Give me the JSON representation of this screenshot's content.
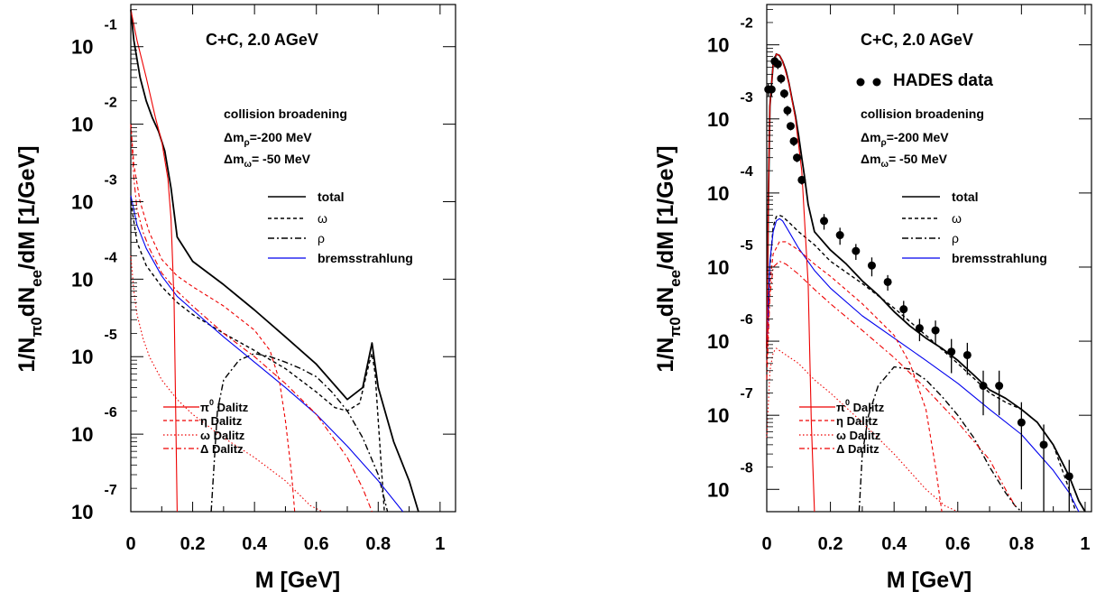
{
  "chart_data": [
    {
      "type": "line",
      "title": "C+C, 2.0 AGeV",
      "xlabel": "M [GeV]",
      "ylabel": "1/Nπ0dNee/dM [1/GeV]",
      "ylabel_parts": {
        "a": "1/N",
        "b": "π0",
        "c": "dN",
        "d": "ee",
        "e": "/dM [1/GeV]"
      },
      "xlim": [
        0,
        1.05
      ],
      "ylim": [
        1e-07,
        0.35
      ],
      "yscale": "log",
      "x_ticks": [
        "0",
        "0.2",
        "0.4",
        "0.6",
        "0.8",
        "1"
      ],
      "y_ticks": [
        {
          "base": "10",
          "exp": "-7"
        },
        {
          "base": "10",
          "exp": "-6"
        },
        {
          "base": "10",
          "exp": "-5"
        },
        {
          "base": "10",
          "exp": "-4"
        },
        {
          "base": "10",
          "exp": "-3"
        },
        {
          "base": "10",
          "exp": "-2"
        },
        {
          "base": "10",
          "exp": "-1"
        }
      ],
      "annotation": {
        "line1": "collision broadening",
        "line2a": "Δm",
        "line2sub": "ρ",
        "line2b": "=-200 MeV",
        "line3a": "Δm",
        "line3sub": "ω",
        "line3b": "= -50 MeV"
      },
      "legend_top": [
        "total",
        "ω",
        "ρ",
        "bremsstrahlung"
      ],
      "legend_bottom": [
        {
          "sym": "π",
          "sup": "0",
          "text": " Dalitz"
        },
        {
          "sym": "η",
          "sup": "",
          "text": " Dalitz"
        },
        {
          "sym": "ω",
          "sup": "",
          "text": " Dalitz"
        },
        {
          "sym": "Δ",
          "sup": "",
          "text": " Dalitz"
        }
      ],
      "colors": {
        "total": "#000000",
        "omega": "#000000",
        "rho": "#000000",
        "brems": "#0000ee",
        "dalitz": "#ee0000"
      },
      "series": [
        {
          "key": "total",
          "x": [
            0.0,
            0.01,
            0.03,
            0.05,
            0.07,
            0.09,
            0.11,
            0.13,
            0.15,
            0.2,
            0.3,
            0.4,
            0.5,
            0.6,
            0.7,
            0.75,
            0.78,
            0.8,
            0.85,
            0.9,
            0.93
          ],
          "y": [
            0.3,
            0.12,
            0.04,
            0.02,
            0.012,
            0.008,
            0.0045,
            0.0015,
            0.00035,
            0.00017,
            8.5e-05,
            4e-05,
            1.8e-05,
            8e-06,
            2.8e-06,
            4e-06,
            1.5e-05,
            4e-06,
            8e-07,
            2.5e-07,
            1e-07
          ]
        },
        {
          "key": "omega",
          "x": [
            0.0,
            0.02,
            0.05,
            0.1,
            0.15,
            0.2,
            0.3,
            0.4,
            0.5,
            0.6,
            0.66,
            0.7,
            0.74,
            0.77,
            0.78,
            0.79,
            0.8,
            0.82
          ],
          "y": [
            0.001,
            0.0003,
            0.00015,
            8e-05,
            5e-05,
            3.5e-05,
            2e-05,
            1.2e-05,
            7e-06,
            3.5e-06,
            2.2e-06,
            2e-06,
            2.5e-06,
            8e-06,
            1.1e-05,
            6e-06,
            1.5e-06,
            1e-07
          ]
        },
        {
          "key": "rho",
          "x": [
            0.26,
            0.28,
            0.3,
            0.35,
            0.4,
            0.45,
            0.5,
            0.55,
            0.6,
            0.65,
            0.7,
            0.75,
            0.8,
            0.83
          ],
          "y": [
            1e-07,
            2e-06,
            5e-06,
            9e-06,
            1.1e-05,
            1e-05,
            8.5e-06,
            7e-06,
            5.5e-06,
            3.5e-06,
            2e-06,
            9e-07,
            3e-07,
            1e-07
          ]
        },
        {
          "key": "brems",
          "x": [
            0.0,
            0.02,
            0.05,
            0.1,
            0.15,
            0.2,
            0.3,
            0.4,
            0.5,
            0.6,
            0.7,
            0.8,
            0.88
          ],
          "y": [
            0.0012,
            0.0005,
            0.00025,
            0.00011,
            6e-05,
            4e-05,
            1.8e-05,
            8.5e-06,
            4e-06,
            1.8e-06,
            7e-07,
            2.5e-07,
            1e-07
          ]
        },
        {
          "key": "pi0",
          "x": [
            0.0,
            0.02,
            0.05,
            0.08,
            0.1,
            0.12,
            0.13,
            0.14,
            0.15
          ],
          "y": [
            0.3,
            0.12,
            0.04,
            0.012,
            0.006,
            0.002,
            0.0006,
            5e-05,
            1e-07
          ]
        },
        {
          "key": "eta",
          "x": [
            0.0,
            0.01,
            0.03,
            0.06,
            0.1,
            0.15,
            0.2,
            0.3,
            0.4,
            0.45,
            0.48,
            0.5,
            0.52,
            0.53
          ],
          "y": [
            0.01,
            0.003,
            0.001,
            0.0004,
            0.00018,
            0.00011,
            8e-05,
            4.5e-05,
            2.2e-05,
            1.2e-05,
            5e-06,
            1.5e-06,
            3e-07,
            1e-07
          ]
        },
        {
          "key": "omegadal",
          "x": [
            0.0,
            0.01,
            0.02,
            0.04,
            0.06,
            0.1,
            0.15,
            0.2,
            0.3,
            0.4,
            0.5,
            0.58,
            0.62
          ],
          "y": [
            0.0002,
            7e-05,
            3.5e-05,
            1.7e-05,
            1e-05,
            5e-06,
            2.8e-06,
            1.8e-06,
            9e-07,
            5e-07,
            2.5e-07,
            1.2e-07,
            1e-07
          ]
        },
        {
          "key": "delta",
          "x": [
            0.0,
            0.01,
            0.02,
            0.04,
            0.06,
            0.1,
            0.15,
            0.2,
            0.3,
            0.4,
            0.5,
            0.6,
            0.7,
            0.75,
            0.78
          ],
          "y": [
            0.01,
            0.002,
            0.0008,
            0.0004,
            0.00025,
            0.00012,
            7e-05,
            4.5e-05,
            2e-05,
            1e-05,
            4.5e-06,
            1.8e-06,
            5e-07,
            2e-07,
            1e-07
          ]
        }
      ]
    },
    {
      "type": "line",
      "title": "C+C, 2.0 AGeV",
      "xlabel": "M [GeV]",
      "ylabel": "1/Nπ0dNee/dM [1/GeV]",
      "ylabel_parts": {
        "a": "1/N",
        "b": "π0",
        "c": "dN",
        "d": "ee",
        "e": "/dM [1/GeV]"
      },
      "xlim": [
        0,
        1.02
      ],
      "ylim": [
        5e-09,
        0.035
      ],
      "yscale": "log",
      "x_ticks": [
        "0",
        "0.2",
        "0.4",
        "0.6",
        "0.8",
        "1"
      ],
      "y_ticks": [
        {
          "base": "10",
          "exp": "-8"
        },
        {
          "base": "10",
          "exp": "-7"
        },
        {
          "base": "10",
          "exp": "-6"
        },
        {
          "base": "10",
          "exp": "-5"
        },
        {
          "base": "10",
          "exp": "-4"
        },
        {
          "base": "10",
          "exp": "-3"
        },
        {
          "base": "10",
          "exp": "-2"
        }
      ],
      "data_label": "HADES data",
      "annotation": {
        "line1": "collision broadening",
        "line2a": "Δm",
        "line2sub": "ρ",
        "line2b": "=-200 MeV",
        "line3a": "Δm",
        "line3sub": "ω",
        "line3b": "= -50 MeV"
      },
      "legend_top": [
        "total",
        "ω",
        "ρ",
        "bremsstrahlung"
      ],
      "legend_bottom": [
        {
          "sym": "π",
          "sup": "0",
          "text": " Dalitz"
        },
        {
          "sym": "η",
          "sup": "",
          "text": " Dalitz"
        },
        {
          "sym": "ω",
          "sup": "",
          "text": " Dalitz"
        },
        {
          "sym": "Δ",
          "sup": "",
          "text": " Dalitz"
        }
      ],
      "colors": {
        "total": "#000000",
        "omega": "#000000",
        "rho": "#000000",
        "brems": "#0000ee",
        "dalitz": "#ee0000",
        "data": "#000000"
      },
      "series": [
        {
          "key": "total",
          "x": [
            0.0,
            0.005,
            0.01,
            0.02,
            0.03,
            0.04,
            0.05,
            0.06,
            0.07,
            0.08,
            0.09,
            0.1,
            0.11,
            0.12,
            0.13,
            0.15,
            0.2,
            0.25,
            0.3,
            0.35,
            0.4,
            0.45,
            0.5,
            0.55,
            0.6,
            0.65,
            0.7,
            0.75,
            0.8,
            0.85,
            0.9,
            0.95,
            0.98,
            1.0
          ],
          "y": [
            8e-07,
            8e-05,
            0.0015,
            0.0055,
            0.0075,
            0.0072,
            0.006,
            0.0045,
            0.003,
            0.0018,
            0.0011,
            0.0006,
            0.0003,
            0.00015,
            7e-05,
            3e-05,
            1.7e-05,
            1.1e-05,
            6.5e-06,
            4.2e-06,
            2.5e-06,
            1.6e-06,
            1.1e-06,
            8e-07,
            5.5e-07,
            3.5e-07,
            2.2e-07,
            1.7e-07,
            1.2e-07,
            8e-08,
            4e-08,
            1.5e-08,
            7e-09,
            5e-09
          ]
        },
        {
          "key": "omega",
          "x": [
            0.0,
            0.01,
            0.02,
            0.03,
            0.04,
            0.05,
            0.07,
            0.1,
            0.15,
            0.2,
            0.3,
            0.4,
            0.5,
            0.6,
            0.7,
            0.75,
            0.8,
            0.85,
            0.9,
            0.95,
            0.97
          ],
          "y": [
            6e-07,
            1e-05,
            3.5e-05,
            4.8e-05,
            5e-05,
            4.8e-05,
            4e-05,
            3e-05,
            2e-05,
            1.2e-05,
            6e-06,
            2.8e-06,
            1.2e-06,
            5e-07,
            2e-07,
            1.5e-07,
            1.2e-07,
            8e-08,
            4e-08,
            1e-08,
            5e-09
          ]
        },
        {
          "key": "rho",
          "x": [
            0.29,
            0.3,
            0.32,
            0.35,
            0.4,
            0.45,
            0.5,
            0.55,
            0.6,
            0.65,
            0.7,
            0.75,
            0.78,
            0.8
          ],
          "y": [
            5e-09,
            3e-08,
            1e-07,
            2.5e-07,
            4.5e-07,
            4.2e-07,
            3e-07,
            1.8e-07,
            1e-07,
            5e-08,
            2e-08,
            9e-09,
            6e-09,
            5e-09
          ]
        },
        {
          "key": "brems",
          "x": [
            0.0,
            0.005,
            0.01,
            0.02,
            0.03,
            0.04,
            0.05,
            0.07,
            0.1,
            0.15,
            0.2,
            0.3,
            0.4,
            0.5,
            0.6,
            0.7,
            0.8,
            0.9,
            0.95,
            0.98
          ],
          "y": [
            8e-07,
            3e-06,
            1.2e-05,
            3e-05,
            4.2e-05,
            4.5e-05,
            4.2e-05,
            3e-05,
            1.8e-05,
            9e-06,
            5.2e-06,
            2.2e-06,
            1.1e-06,
            5.5e-07,
            2.7e-07,
            1.2e-07,
            5.5e-08,
            1.8e-08,
            9e-09,
            5e-09
          ]
        },
        {
          "key": "pi0",
          "x": [
            0.0,
            0.005,
            0.01,
            0.02,
            0.03,
            0.04,
            0.05,
            0.07,
            0.09,
            0.11,
            0.13,
            0.14,
            0.15
          ],
          "y": [
            8e-07,
            8e-05,
            0.0015,
            0.0055,
            0.0075,
            0.0072,
            0.006,
            0.003,
            0.001,
            0.0002,
            6e-06,
            8e-08,
            5e-09
          ]
        },
        {
          "key": "eta",
          "x": [
            0.0,
            0.01,
            0.02,
            0.04,
            0.06,
            0.1,
            0.15,
            0.2,
            0.3,
            0.4,
            0.45,
            0.5,
            0.53,
            0.55
          ],
          "y": [
            5e-07,
            6e-06,
            1.5e-05,
            2.2e-05,
            2.2e-05,
            1.7e-05,
            1.1e-05,
            7.5e-06,
            3.2e-06,
            1.2e-06,
            5e-07,
            1.2e-07,
            2e-08,
            5e-09
          ]
        },
        {
          "key": "omegadal",
          "x": [
            0.0,
            0.01,
            0.02,
            0.03,
            0.05,
            0.1,
            0.15,
            0.2,
            0.3,
            0.4,
            0.5,
            0.56,
            0.6
          ],
          "y": [
            5e-08,
            4e-07,
            7e-07,
            8e-07,
            7e-07,
            5e-07,
            3e-07,
            2e-07,
            8e-08,
            3e-08,
            1e-08,
            6e-09,
            5e-09
          ]
        },
        {
          "key": "delta",
          "x": [
            0.0,
            0.01,
            0.02,
            0.04,
            0.06,
            0.1,
            0.15,
            0.2,
            0.3,
            0.4,
            0.5,
            0.6,
            0.7,
            0.75,
            0.78
          ],
          "y": [
            3e-07,
            4e-06,
            1e-05,
            1.2e-05,
            1.1e-05,
            8e-06,
            5e-06,
            3.2e-06,
            1.4e-06,
            6e-07,
            2.3e-07,
            8e-08,
            2.5e-08,
            1e-08,
            6e-09
          ]
        },
        {
          "key": "data",
          "x": [
            0.005,
            0.015,
            0.025,
            0.035,
            0.045,
            0.055,
            0.065,
            0.075,
            0.085,
            0.095,
            0.11,
            0.18,
            0.23,
            0.28,
            0.33,
            0.38,
            0.43,
            0.48,
            0.53,
            0.58,
            0.63,
            0.68,
            0.73,
            0.8,
            0.87,
            0.95
          ],
          "y": [
            0.0025,
            0.0025,
            0.006,
            0.0055,
            0.0035,
            0.0022,
            0.0013,
            0.0008,
            0.0005,
            0.0003,
            0.00015,
            4.2e-05,
            2.7e-05,
            1.65e-05,
            1.05e-05,
            6.3e-06,
            2.7e-06,
            1.5e-06,
            1.4e-06,
            7.2e-07,
            6.5e-07,
            2.5e-07,
            2.5e-07,
            8e-08,
            4e-08,
            1.5e-08
          ],
          "err": [
            0.0005,
            0.0005,
            0.001,
            0.0008,
            0.0005,
            0.0003,
            0.0002,
            0.0001,
            7e-05,
            4e-05,
            2e-05,
            1e-05,
            7e-06,
            4e-06,
            3e-06,
            1.5e-06,
            8e-07,
            5e-07,
            5e-07,
            3.5e-07,
            3e-07,
            1.5e-07,
            1.5e-07,
            7e-08,
            3.5e-08,
            1e-08
          ]
        }
      ]
    }
  ]
}
